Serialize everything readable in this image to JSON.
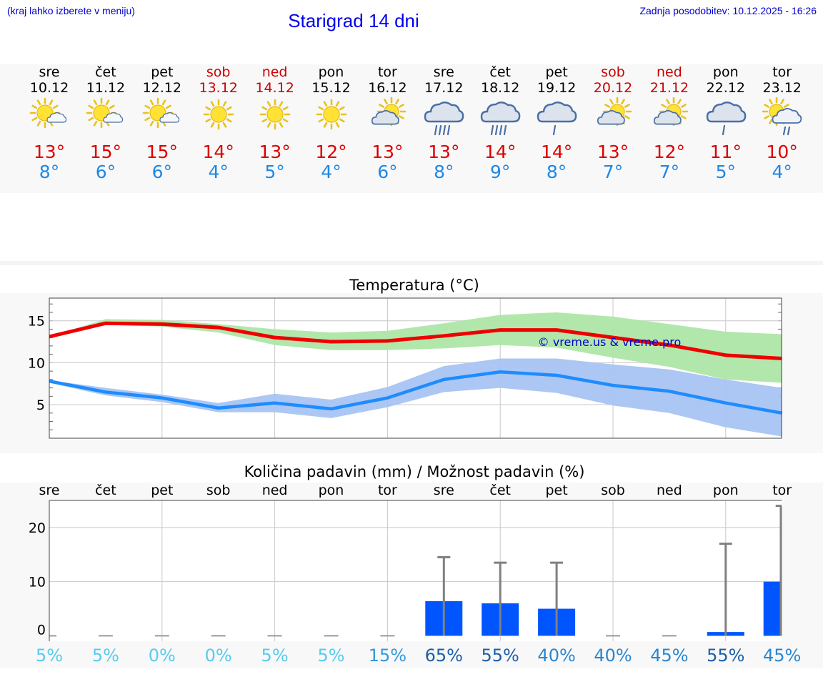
{
  "header": {
    "hint": "(kraj lahko izberete v meniju)",
    "title": "Starigrad 14 dni",
    "updated": "Zadnja posodobitev: 10.12.2025 - 16:26"
  },
  "colors": {
    "title": "#0000ee",
    "high": "#dd0000",
    "low": "#1e88e5",
    "weekend": "#cc0000",
    "max_line": "#ee0000",
    "max_band": "#aee6a8",
    "min_line": "#1e8cff",
    "min_band": "#a8c4f2",
    "bar": "#0055ff",
    "error_bar": "#808080"
  },
  "days": [
    {
      "name": "sre",
      "date": "10.12",
      "weekend": false,
      "icon": "sun-cloud-icon",
      "high": "13°",
      "low": "8°"
    },
    {
      "name": "čet",
      "date": "11.12",
      "weekend": false,
      "icon": "sun-cloud-icon",
      "high": "15°",
      "low": "6°"
    },
    {
      "name": "pet",
      "date": "12.12",
      "weekend": false,
      "icon": "sun-cloud-icon",
      "high": "15°",
      "low": "6°"
    },
    {
      "name": "sob",
      "date": "13.12",
      "weekend": true,
      "icon": "sun-icon",
      "high": "14°",
      "low": "4°"
    },
    {
      "name": "ned",
      "date": "14.12",
      "weekend": true,
      "icon": "sun-icon",
      "high": "13°",
      "low": "5°"
    },
    {
      "name": "pon",
      "date": "15.12",
      "weekend": false,
      "icon": "sun-icon",
      "high": "12°",
      "low": "4°"
    },
    {
      "name": "tor",
      "date": "16.12",
      "weekend": false,
      "icon": "cloud-sun-icon",
      "high": "13°",
      "low": "6°"
    },
    {
      "name": "sre",
      "date": "17.12",
      "weekend": false,
      "icon": "heavy-rain-icon",
      "high": "13°",
      "low": "8°"
    },
    {
      "name": "čet",
      "date": "18.12",
      "weekend": false,
      "icon": "heavy-rain-icon",
      "high": "14°",
      "low": "9°"
    },
    {
      "name": "pet",
      "date": "19.12",
      "weekend": false,
      "icon": "light-rain-icon",
      "high": "14°",
      "low": "8°"
    },
    {
      "name": "sob",
      "date": "20.12",
      "weekend": true,
      "icon": "cloud-sun-icon",
      "high": "13°",
      "low": "7°"
    },
    {
      "name": "ned",
      "date": "21.12",
      "weekend": true,
      "icon": "cloud-sun-icon",
      "high": "12°",
      "low": "7°"
    },
    {
      "name": "pon",
      "date": "22.12",
      "weekend": false,
      "icon": "light-rain-icon",
      "high": "11°",
      "low": "5°"
    },
    {
      "name": "tor",
      "date": "23.12",
      "weekend": false,
      "icon": "sun-cloud-rain-icon",
      "high": "10°",
      "low": "4°"
    }
  ],
  "chart_data": [
    {
      "type": "line",
      "title": "Temperatura (°C)",
      "xlabel": "",
      "ylabel": "",
      "x": [
        "10.12",
        "11.12",
        "12.12",
        "13.12",
        "14.12",
        "15.12",
        "16.12",
        "17.12",
        "18.12",
        "19.12",
        "20.12",
        "21.12",
        "22.12",
        "23.12"
      ],
      "ylim": [
        1,
        17.7
      ],
      "yticks": [
        5,
        10,
        15
      ],
      "watermark": "© vreme.us & vreme.pro",
      "series": [
        {
          "name": "max",
          "values": [
            13.1,
            14.7,
            14.6,
            14.2,
            13.0,
            12.5,
            12.6,
            13.2,
            13.9,
            13.9,
            13.0,
            12.1,
            10.9,
            10.5
          ],
          "upper": [
            13.1,
            15.2,
            15.1,
            14.6,
            14.0,
            13.6,
            13.8,
            14.7,
            15.7,
            16.0,
            15.5,
            14.6,
            13.7,
            13.4
          ],
          "lower": [
            13.0,
            14.5,
            14.3,
            13.6,
            12.1,
            11.5,
            11.5,
            11.7,
            12.1,
            11.8,
            10.6,
            9.5,
            8.0,
            7.6
          ]
        },
        {
          "name": "min",
          "values": [
            7.8,
            6.5,
            5.8,
            4.6,
            5.2,
            4.5,
            5.8,
            8.0,
            8.9,
            8.5,
            7.3,
            6.6,
            5.2,
            4.0
          ],
          "upper": [
            7.9,
            7.0,
            6.2,
            5.2,
            6.3,
            5.6,
            7.1,
            9.6,
            10.5,
            10.5,
            9.8,
            9.2,
            8.0,
            7.0
          ],
          "lower": [
            7.6,
            6.1,
            5.3,
            4.1,
            4.1,
            3.4,
            4.7,
            6.5,
            7.0,
            6.4,
            4.9,
            4.0,
            2.3,
            1.2
          ]
        }
      ]
    },
    {
      "type": "bar",
      "title": "Količina padavin (mm) / Možnost padavin (%)",
      "xlabel": "",
      "ylabel": "",
      "categories": [
        "sre",
        "čet",
        "pet",
        "sob",
        "ned",
        "pon",
        "tor",
        "sre",
        "čet",
        "pet",
        "sob",
        "ned",
        "pon",
        "tor"
      ],
      "ylim": [
        -1,
        25
      ],
      "yticks": [
        0,
        10,
        20
      ],
      "values": [
        0,
        0,
        0,
        0,
        0,
        0,
        0,
        6.4,
        6.0,
        5.0,
        0,
        0,
        0.7,
        10.0
      ],
      "error_upper": [
        0,
        0,
        0,
        0,
        0,
        0,
        0,
        14.5,
        13.5,
        13.5,
        0,
        0,
        17.0,
        24.0
      ],
      "probabilities": [
        "5%",
        "5%",
        "0%",
        "0%",
        "5%",
        "5%",
        "15%",
        "65%",
        "55%",
        "40%",
        "40%",
        "45%",
        "55%",
        "45%"
      ],
      "probability_colors": [
        "#55ccee",
        "#55ccee",
        "#55ccee",
        "#55ccee",
        "#55ccee",
        "#55ccee",
        "#3399dd",
        "#1a5fa8",
        "#1a5fa8",
        "#2a86d0",
        "#2a86d0",
        "#2a86d0",
        "#1a5fa8",
        "#2a86d0"
      ]
    }
  ]
}
